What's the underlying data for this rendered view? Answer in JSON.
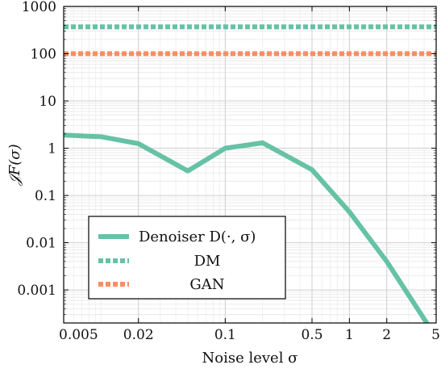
{
  "chart_data": {
    "type": "line",
    "xlabel": "Noise level σ",
    "ylabel": "𝒥F(σ)",
    "x_scale": "log",
    "y_scale": "log",
    "xlim": [
      0.005,
      5
    ],
    "ylim": [
      0.0002,
      1000
    ],
    "x_ticks": [
      {
        "value": 0.005,
        "label": "0.005"
      },
      {
        "value": 0.02,
        "label": "0.02"
      },
      {
        "value": 0.1,
        "label": "0.1"
      },
      {
        "value": 0.5,
        "label": "0.5"
      },
      {
        "value": 1,
        "label": "1"
      },
      {
        "value": 2,
        "label": "2"
      },
      {
        "value": 5,
        "label": "5"
      }
    ],
    "y_ticks": [
      {
        "value": 1000,
        "label": "1000"
      },
      {
        "value": 100,
        "label": "100"
      },
      {
        "value": 10,
        "label": "10"
      },
      {
        "value": 1,
        "label": "1"
      },
      {
        "value": 0.1,
        "label": "0.1"
      },
      {
        "value": 0.01,
        "label": "0.01"
      },
      {
        "value": 0.001,
        "label": "0.001"
      }
    ],
    "grid": true,
    "legend_position": "bottom-left",
    "series": [
      {
        "name": "Denoiser D(·, σ)",
        "style": "solid",
        "color": "#66c2a5",
        "points": [
          {
            "x": 0.005,
            "y": 1.9
          },
          {
            "x": 0.01,
            "y": 1.75
          },
          {
            "x": 0.02,
            "y": 1.25
          },
          {
            "x": 0.05,
            "y": 0.33
          },
          {
            "x": 0.1,
            "y": 1.0
          },
          {
            "x": 0.2,
            "y": 1.3
          },
          {
            "x": 0.5,
            "y": 0.35
          },
          {
            "x": 1,
            "y": 0.045
          },
          {
            "x": 2,
            "y": 0.004
          },
          {
            "x": 4.2,
            "y": 0.0002
          }
        ]
      },
      {
        "name": "DM",
        "style": "dotted",
        "color": "#66c2a5",
        "points": [
          {
            "x": 0.005,
            "y": 370
          },
          {
            "x": 5,
            "y": 370
          }
        ]
      },
      {
        "name": "GAN",
        "style": "dotted",
        "color": "#fc8d62",
        "points": [
          {
            "x": 0.005,
            "y": 100
          },
          {
            "x": 5,
            "y": 100
          }
        ]
      }
    ]
  }
}
